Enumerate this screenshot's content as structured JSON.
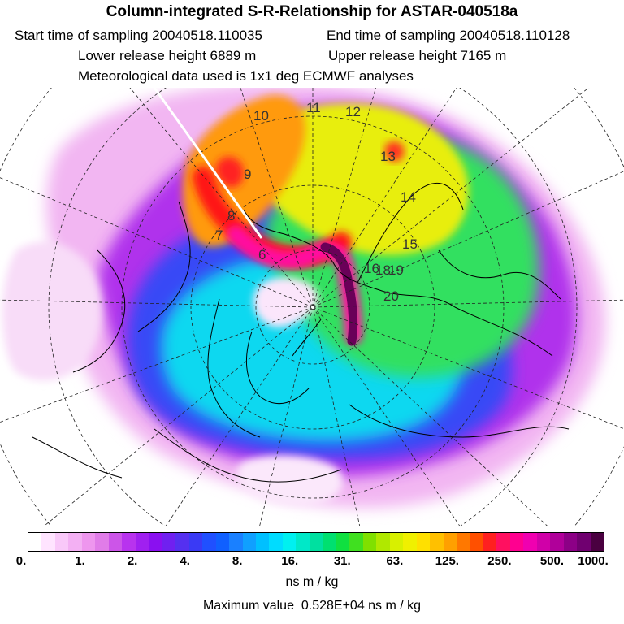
{
  "header": {
    "title": "Column-integrated S-R-Relationship for ASTAR-040518a",
    "start_label": "Start time of sampling 20040518.110035",
    "end_label": "End time of sampling 20040518.110128",
    "lower_label": "Lower release height 6889 m",
    "upper_label": "Upper release height 7165 m",
    "met_label": "Meteorological data used is 1x1 deg ECMWF analyses"
  },
  "map": {
    "hour_labels": [
      "6",
      "7",
      "8",
      "9",
      "10",
      "11",
      "12",
      "13",
      "14",
      "15",
      "16",
      "18",
      "19",
      "20"
    ],
    "colors": {
      "low": "#f6ccf6",
      "purple": "#a020f0",
      "blue": "#3050ff",
      "cyan": "#00e8e8",
      "green": "#20e040",
      "yellow": "#f0f000",
      "red": "#ff2020",
      "magenta": "#ff10a0",
      "maroon": "#600050"
    }
  },
  "colorbar": {
    "swatches": [
      "#ffffff",
      "#ffe4ff",
      "#f9c8f9",
      "#f3b0f3",
      "#ee96ee",
      "#e07ce8",
      "#cc55e8",
      "#b833ee",
      "#a020f0",
      "#8a10f0",
      "#7020f0",
      "#5530f0",
      "#3a3af5",
      "#2050ff",
      "#1060ff",
      "#1a80ff",
      "#10a0ff",
      "#00c0ff",
      "#00dcff",
      "#00f0f0",
      "#00e8c8",
      "#00e0a0",
      "#00e070",
      "#10e040",
      "#40e020",
      "#80e000",
      "#b0e800",
      "#d8f000",
      "#f0f000",
      "#ffe000",
      "#ffc000",
      "#ffa000",
      "#ff7800",
      "#ff5000",
      "#ff2020",
      "#ff1060",
      "#ff0090",
      "#f000b0",
      "#d000a8",
      "#b0009a",
      "#8c0086",
      "#700070",
      "#4a0040"
    ],
    "tick_labels": [
      "0.",
      "1.",
      "2.",
      "4.",
      "8.",
      "16.",
      "31.",
      "63.",
      "125.",
      "250.",
      "500.",
      "1000."
    ],
    "units": "ns m / kg"
  },
  "footer": {
    "max_value": "Maximum value  0.528E+04 ns m / kg"
  }
}
